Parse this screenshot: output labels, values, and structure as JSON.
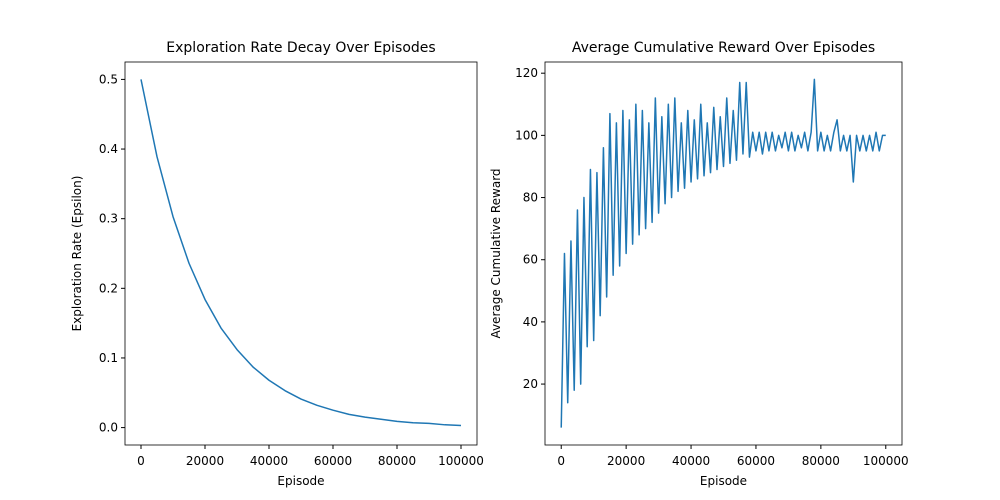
{
  "chart_data": [
    {
      "type": "line",
      "title": "Exploration Rate Decay Over Episodes",
      "x_label": "Episode",
      "y_label": "Exploration Rate (Epsilon)",
      "x": [
        0,
        5000,
        10000,
        15000,
        20000,
        25000,
        30000,
        35000,
        40000,
        45000,
        50000,
        55000,
        60000,
        65000,
        70000,
        75000,
        80000,
        85000,
        90000,
        95000,
        100000
      ],
      "values": [
        0.5,
        0.389,
        0.303,
        0.236,
        0.184,
        0.143,
        0.112,
        0.087,
        0.068,
        0.053,
        0.041,
        0.032,
        0.025,
        0.019,
        0.015,
        0.012,
        0.009,
        0.007,
        0.006,
        0.004,
        0.003
      ],
      "color": "#1f77b4",
      "xlim": [
        -5000,
        105000
      ],
      "xticks": [
        0,
        20000,
        40000,
        60000,
        80000,
        100000
      ],
      "ylim": [
        -0.025,
        0.525
      ],
      "yticks": [
        {
          "value": 0,
          "label": "0.0"
        },
        0.1,
        0.2,
        0.3,
        0.4,
        0.5
      ]
    },
    {
      "type": "line",
      "title": "Average Cumulative Reward Over Episodes",
      "x_label": "Episode",
      "y_label": "Average Cumulative Reward",
      "x": [
        0,
        1000,
        2000,
        3000,
        4000,
        5000,
        6000,
        7000,
        8000,
        9000,
        10000,
        11000,
        12000,
        13000,
        14000,
        15000,
        16000,
        17000,
        18000,
        19000,
        20000,
        21000,
        22000,
        23000,
        24000,
        25000,
        26000,
        27000,
        28000,
        29000,
        30000,
        31000,
        32000,
        33000,
        34000,
        35000,
        36000,
        37000,
        38000,
        39000,
        40000,
        41000,
        42000,
        43000,
        44000,
        45000,
        46000,
        47000,
        48000,
        49000,
        50000,
        51000,
        52000,
        53000,
        54000,
        55000,
        56000,
        57000,
        58000,
        59000,
        60000,
        61000,
        62000,
        63000,
        64000,
        65000,
        66000,
        67000,
        68000,
        69000,
        70000,
        71000,
        72000,
        73000,
        74000,
        75000,
        76000,
        77000,
        78000,
        79000,
        80000,
        81000,
        82000,
        83000,
        84000,
        85000,
        86000,
        87000,
        88000,
        89000,
        90000,
        91000,
        92000,
        93000,
        94000,
        95000,
        96000,
        97000,
        98000,
        99000,
        100000
      ],
      "values": [
        6,
        62,
        14,
        66,
        18,
        76,
        20,
        80,
        32,
        89,
        34,
        88,
        42,
        96,
        48,
        107,
        55,
        104,
        58,
        108,
        62,
        105,
        65,
        110,
        68,
        108,
        70,
        104,
        72,
        112,
        75,
        106,
        78,
        110,
        80,
        112,
        82,
        104,
        83,
        108,
        85,
        105,
        86,
        110,
        87,
        104,
        88,
        109,
        89,
        106,
        90,
        112,
        91,
        108,
        92,
        117,
        94,
        117,
        93,
        101,
        95,
        101,
        94,
        101,
        95,
        101,
        95,
        100,
        96,
        101,
        95,
        101,
        95,
        100,
        96,
        101,
        95,
        101,
        118,
        95,
        101,
        95,
        100,
        95,
        101,
        105,
        95,
        100,
        95,
        100,
        85,
        100,
        95,
        100,
        95,
        100,
        95,
        101,
        95,
        100,
        100
      ],
      "color": "#1f77b4",
      "xlim": [
        -5000,
        105000
      ],
      "xticks": [
        0,
        20000,
        40000,
        60000,
        80000,
        100000
      ],
      "ylim": [
        0.4,
        123.6
      ],
      "yticks": [
        20,
        40,
        60,
        80,
        100,
        120
      ]
    }
  ]
}
